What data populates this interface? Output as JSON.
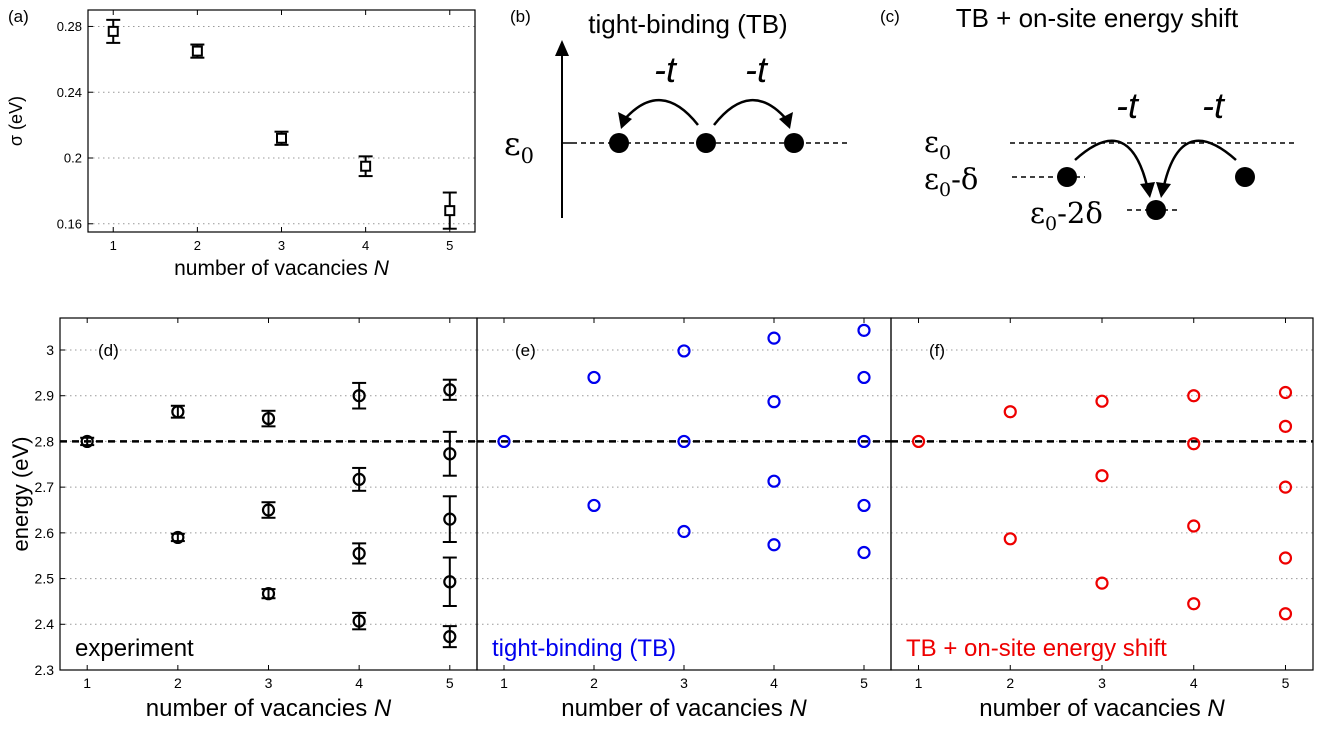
{
  "colors": {
    "experiment": "#000000",
    "tb": "#0000ee",
    "tb_shift": "#ee0000",
    "grid": "#999999",
    "axis": "#000000"
  },
  "panel_labels": {
    "a": "(a)",
    "b": "(b)",
    "c": "(c)",
    "d": "(d)",
    "e": "(e)",
    "f": "(f)"
  },
  "diagram_b": {
    "title": "tight-binding (TB)",
    "level_label": "ε0",
    "level_sub": "0",
    "level_base": "ε",
    "hop_labels": [
      "-t",
      "-t"
    ]
  },
  "diagram_c": {
    "title": "TB + on-site energy shift",
    "levels": [
      {
        "base": "ε",
        "sub": "0",
        "suffix": ""
      },
      {
        "base": "ε",
        "sub": "0",
        "suffix": "-δ"
      },
      {
        "base": "ε",
        "sub": "0",
        "suffix": "-2δ"
      }
    ],
    "hop_labels": [
      "-t",
      "-t"
    ]
  },
  "chart_data": [
    {
      "id": "a",
      "type": "scatter",
      "marker": "square",
      "xlabel": "number of vacancies N",
      "xlabel_text": "number of vacancies ",
      "xlabel_var": "N",
      "ylabel": "σ (eV)",
      "xlim": [
        0.7,
        5.3
      ],
      "ylim": [
        0.155,
        0.29
      ],
      "xticks": [
        1,
        2,
        3,
        4,
        5
      ],
      "yticks": [
        0.16,
        0.2,
        0.24,
        0.28
      ],
      "ytick_labels": [
        "0.16",
        "0.2",
        "0.24",
        "0.28"
      ],
      "grid": "y-dotted",
      "series": [
        {
          "color": "#000000",
          "points": [
            {
              "x": 1,
              "y": 0.277,
              "err": 0.007
            },
            {
              "x": 2,
              "y": 0.265,
              "err": 0.004
            },
            {
              "x": 3,
              "y": 0.212,
              "err": 0.004
            },
            {
              "x": 4,
              "y": 0.195,
              "err": 0.006
            },
            {
              "x": 5,
              "y": 0.168,
              "err": 0.011
            }
          ]
        }
      ]
    },
    {
      "id": "d",
      "type": "scatter",
      "marker": "circle",
      "annotation": "experiment",
      "xlabel": "number of vacancies N",
      "xlabel_text": "number of vacancies ",
      "xlabel_var": "N",
      "ylabel": "energy (eV)",
      "xlim": [
        0.7,
        5.3
      ],
      "ylim": [
        2.3,
        3.07
      ],
      "xticks": [
        1,
        2,
        3,
        4,
        5
      ],
      "yticks": [
        2.3,
        2.4,
        2.5,
        2.6,
        2.7,
        2.8,
        2.9,
        3.0
      ],
      "ytick_labels": [
        "2.3",
        "2.4",
        "2.5",
        "2.6",
        "2.7",
        "2.8",
        "2.9",
        "3"
      ],
      "reference_line": 2.8,
      "grid": "y-dotted",
      "series": [
        {
          "color": "#000000",
          "points": [
            {
              "x": 1,
              "y": 2.8,
              "err": 0.008
            },
            {
              "x": 2,
              "y": 2.865,
              "err": 0.013
            },
            {
              "x": 2,
              "y": 2.59,
              "err": 0.008
            },
            {
              "x": 3,
              "y": 2.85,
              "err": 0.017
            },
            {
              "x": 3,
              "y": 2.65,
              "err": 0.017
            },
            {
              "x": 3,
              "y": 2.467,
              "err": 0.01
            },
            {
              "x": 4,
              "y": 2.9,
              "err": 0.028
            },
            {
              "x": 4,
              "y": 2.717,
              "err": 0.025
            },
            {
              "x": 4,
              "y": 2.555,
              "err": 0.022
            },
            {
              "x": 4,
              "y": 2.407,
              "err": 0.018
            },
            {
              "x": 5,
              "y": 2.913,
              "err": 0.022
            },
            {
              "x": 5,
              "y": 2.773,
              "err": 0.048
            },
            {
              "x": 5,
              "y": 2.63,
              "err": 0.05
            },
            {
              "x": 5,
              "y": 2.493,
              "err": 0.053
            },
            {
              "x": 5,
              "y": 2.373,
              "err": 0.023
            }
          ]
        }
      ]
    },
    {
      "id": "e",
      "type": "scatter",
      "marker": "circle",
      "annotation": "tight-binding (TB)",
      "xlabel": "number of vacancies N",
      "xlabel_text": "number of vacancies ",
      "xlabel_var": "N",
      "xlim": [
        0.7,
        5.3
      ],
      "ylim": [
        2.3,
        3.07
      ],
      "xticks": [
        1,
        2,
        3,
        4,
        5
      ],
      "reference_line": 2.8,
      "grid": "y-dotted",
      "series": [
        {
          "color": "#0000ee",
          "points": [
            {
              "x": 1,
              "y": 2.8
            },
            {
              "x": 2,
              "y": 2.94
            },
            {
              "x": 2,
              "y": 2.66
            },
            {
              "x": 3,
              "y": 2.998
            },
            {
              "x": 3,
              "y": 2.8
            },
            {
              "x": 3,
              "y": 2.603
            },
            {
              "x": 4,
              "y": 3.026
            },
            {
              "x": 4,
              "y": 2.887
            },
            {
              "x": 4,
              "y": 2.713
            },
            {
              "x": 4,
              "y": 2.574
            },
            {
              "x": 5,
              "y": 3.043
            },
            {
              "x": 5,
              "y": 2.94
            },
            {
              "x": 5,
              "y": 2.8
            },
            {
              "x": 5,
              "y": 2.66
            },
            {
              "x": 5,
              "y": 2.557
            }
          ]
        }
      ]
    },
    {
      "id": "f",
      "type": "scatter",
      "marker": "circle",
      "annotation": "TB + on-site energy shift",
      "xlabel": "number of vacancies N",
      "xlabel_text": "number of vacancies ",
      "xlabel_var": "N",
      "xlim": [
        0.7,
        5.3
      ],
      "ylim": [
        2.3,
        3.07
      ],
      "xticks": [
        1,
        2,
        3,
        4,
        5
      ],
      "reference_line": 2.8,
      "grid": "y-dotted",
      "series": [
        {
          "color": "#ee0000",
          "points": [
            {
              "x": 1,
              "y": 2.8
            },
            {
              "x": 2,
              "y": 2.865
            },
            {
              "x": 2,
              "y": 2.587
            },
            {
              "x": 3,
              "y": 2.888
            },
            {
              "x": 3,
              "y": 2.725
            },
            {
              "x": 3,
              "y": 2.49
            },
            {
              "x": 4,
              "y": 2.9
            },
            {
              "x": 4,
              "y": 2.795
            },
            {
              "x": 4,
              "y": 2.615
            },
            {
              "x": 4,
              "y": 2.445
            },
            {
              "x": 5,
              "y": 2.907
            },
            {
              "x": 5,
              "y": 2.833
            },
            {
              "x": 5,
              "y": 2.7
            },
            {
              "x": 5,
              "y": 2.545
            },
            {
              "x": 5,
              "y": 2.423
            }
          ]
        }
      ]
    }
  ]
}
